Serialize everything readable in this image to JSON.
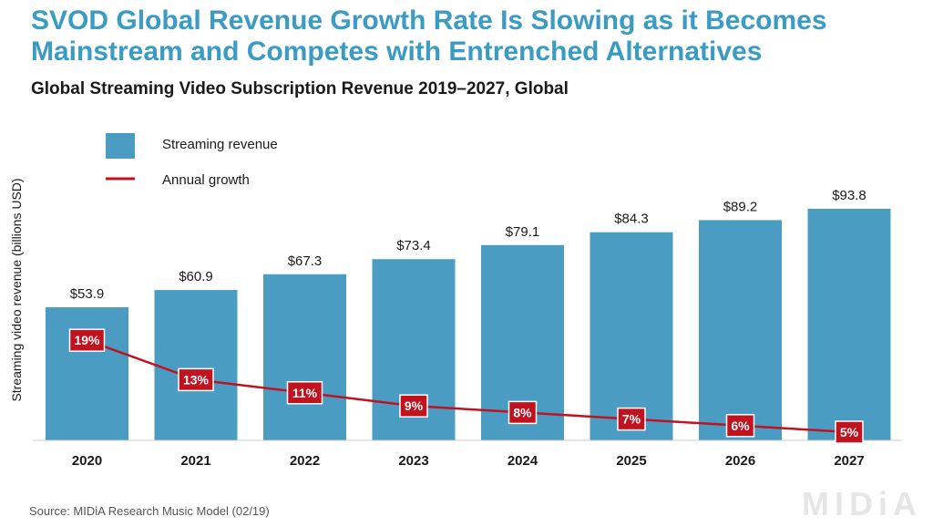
{
  "title": "SVOD Global Revenue Growth Rate Is Slowing as it Becomes Mainstream and Competes with Entrenched Alternatives",
  "subtitle": "Global Streaming Video Subscription Revenue 2019–2027, Global",
  "source": "Source: MIDiA Research Music Model (02/19)",
  "logo_text": "MIDiA",
  "colors": {
    "title": "#3a9bc4",
    "bar": "#4a9cc2",
    "line": "#c0121f",
    "growth_label_bg": "#c0121f",
    "growth_label_text": "#ffffff"
  },
  "chart_data": {
    "type": "bar",
    "title": "Global Streaming Video Subscription Revenue 2019–2027, Global",
    "xlabel": "",
    "ylabel": "Streaming video revenue (billions USD)",
    "categories": [
      "2020",
      "2021",
      "2022",
      "2023",
      "2024",
      "2025",
      "2026",
      "2027"
    ],
    "series": [
      {
        "name": "Streaming revenue",
        "type": "bar",
        "values": [
          53.9,
          60.9,
          67.3,
          73.4,
          79.1,
          84.3,
          89.2,
          93.8
        ],
        "labels": [
          "$53.9",
          "$60.9",
          "$67.3",
          "$73.4",
          "$79.1",
          "$84.3",
          "$89.2",
          "$93.8"
        ]
      },
      {
        "name": "Annual growth",
        "type": "line",
        "values": [
          19,
          13,
          11,
          9,
          8,
          7,
          6,
          5
        ],
        "labels": [
          "19%",
          "13%",
          "11%",
          "9%",
          "8%",
          "7%",
          "6%",
          "5%"
        ]
      }
    ],
    "ylim": [
      0,
      93.8
    ],
    "grid": false,
    "legend_position": "top-left"
  }
}
